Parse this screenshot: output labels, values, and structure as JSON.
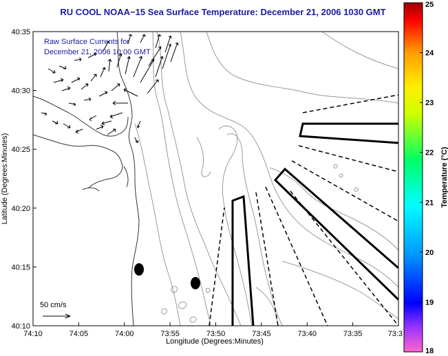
{
  "title": "RU COOL  NOAA−15  Sea Surface Temperature:  December 21, 2006 1030 GMT",
  "overlay_text": [
    "Raw Surface Currents for",
    "December 21, 2006 10:00 GMT"
  ],
  "map": {
    "xlabel": "Longitude (Degrees:Minutes)",
    "ylabel": "Latitude (Degrees:Minutes)",
    "x_ticks": [
      "74:10",
      "74:05",
      "74:00",
      "73:55",
      "73:50",
      "73:45",
      "73:40",
      "73:35",
      "73:3"
    ],
    "y_ticks": [
      "40:35",
      "40:30",
      "40:25",
      "40:20",
      "40:15",
      "40:10"
    ],
    "lon_range_deg": [
      -74.1667,
      -73.5
    ],
    "lat_range_deg": [
      40.1667,
      40.5833
    ]
  },
  "scale_label": "50 cm/s",
  "colorbar": {
    "label": "Temperature (°C)",
    "ticks": [
      "25",
      "24",
      "23",
      "22",
      "21",
      "20",
      "19",
      "18"
    ],
    "range": [
      18,
      25
    ]
  },
  "colors": {
    "title": "#1a1aa0",
    "contour": "#999999",
    "coast": "#333333",
    "vector": "#000000"
  }
}
